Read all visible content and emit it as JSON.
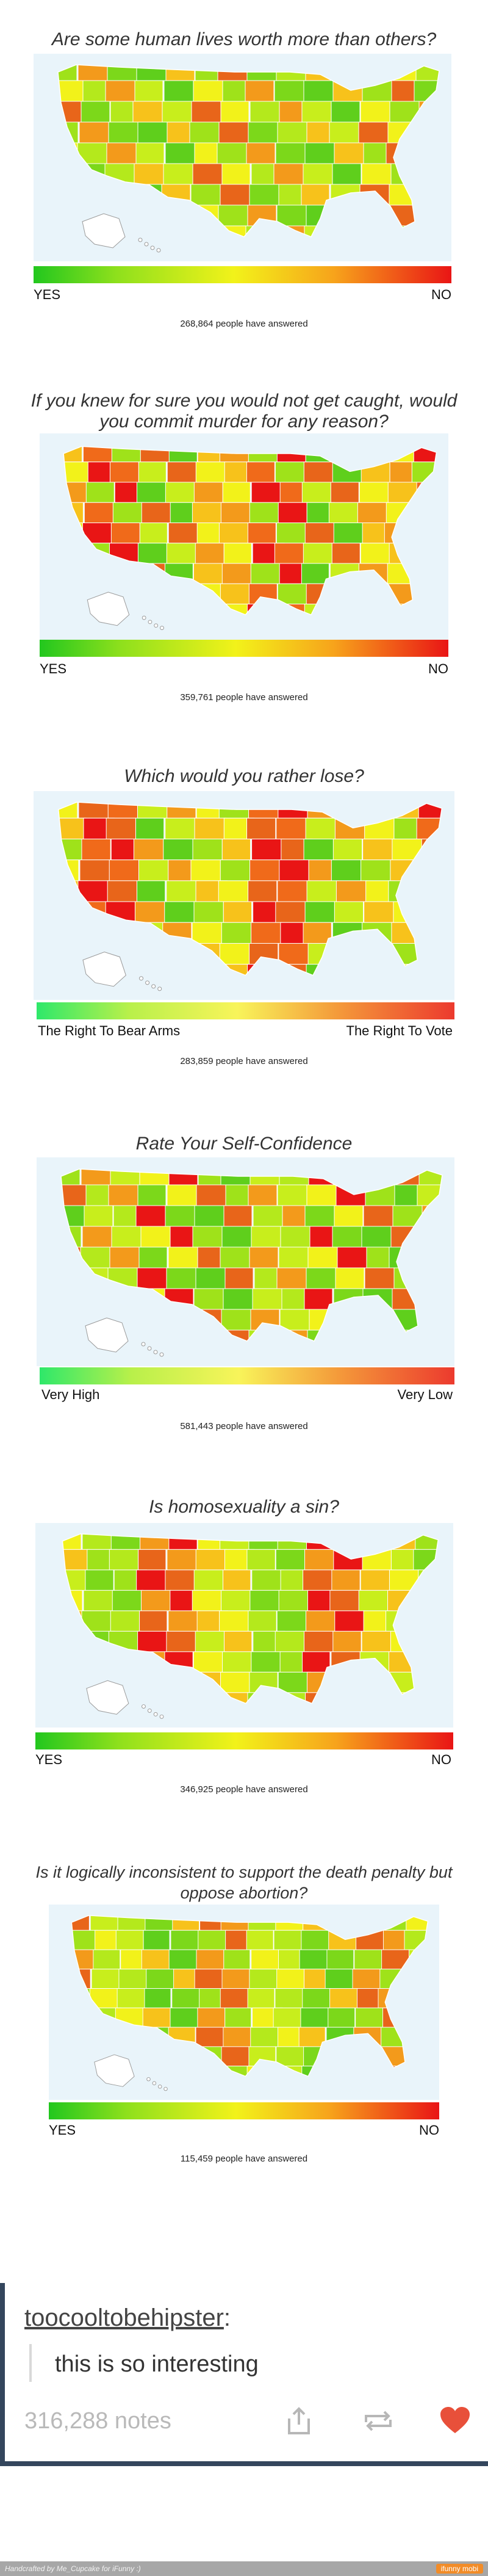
{
  "panels": [
    {
      "title": "Are some human lives worth more than others?",
      "left": "YES",
      "right": "NO",
      "answered": "268,864 people have answered"
    },
    {
      "title": "If you knew for sure you would not get caught, would you commit murder for any reason?",
      "left": "YES",
      "right": "NO",
      "answered": "359,761 people have answered"
    },
    {
      "title": "Which would you rather lose?",
      "left": "The Right To Bear Arms",
      "right": "The Right To Vote",
      "answered": "283,859 people have answered"
    },
    {
      "title": "Rate Your Self-Confidence",
      "left": "Very High",
      "right": "Very Low",
      "answered": "581,443 people have answered"
    },
    {
      "title": "Is homosexuality a sin?",
      "left": "YES",
      "right": "NO",
      "answered": "346,925 people have answered"
    },
    {
      "title": "Is it logically inconsistent to support the death penalty but oppose abortion?",
      "left": "YES",
      "right": "NO",
      "answered": "115,459 people have answered"
    }
  ],
  "post": {
    "username": "toocooltobehipster",
    "username_suffix": ":",
    "quote": "this is so interesting",
    "notes": "316,288 notes"
  },
  "footer": {
    "left": "Handcrafted by Me_Cupcake for iFunny :)",
    "right": "ifunny mobi"
  },
  "colors": {
    "scale_green": "#22c71e",
    "scale_yellow": "#f2f21a",
    "scale_red": "#e91515",
    "map_water": "#e9f4fa",
    "heart": "#e8503a",
    "post_border": "#34465d"
  },
  "icons": [
    "share-icon",
    "reblog-icon",
    "heart-icon"
  ]
}
